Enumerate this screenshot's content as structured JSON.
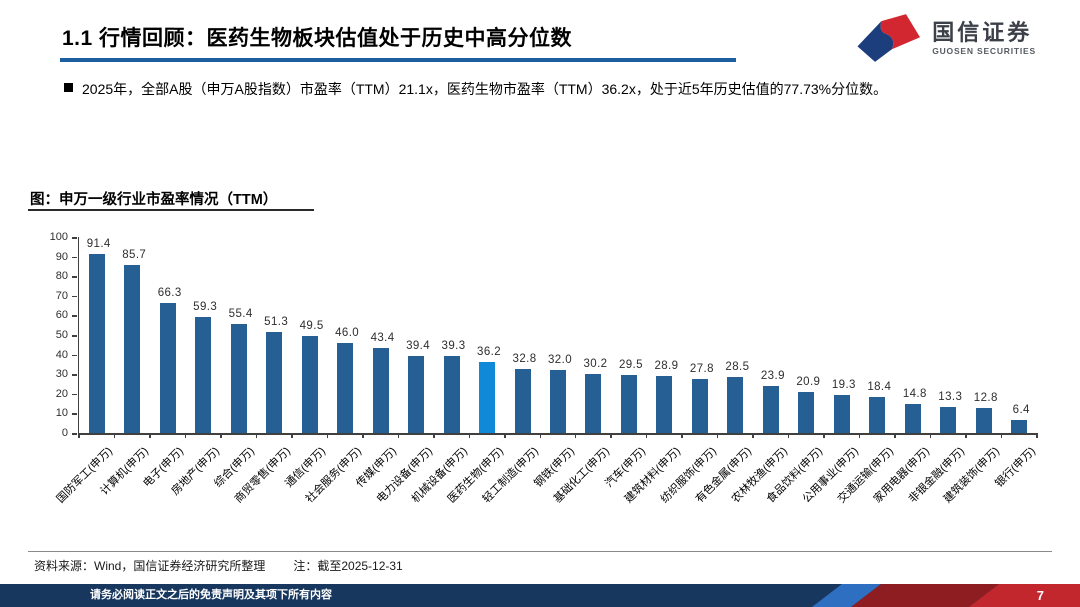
{
  "header": {
    "title": "1.1 行情回顾：医药生物板块估值处于历史中高分位数",
    "logo_cn": "国信证券",
    "logo_en": "GUOSEN SECURITIES"
  },
  "bullet": {
    "text": "2025年，全部A股（申万A股指数）市盈率（TTM）21.1x，医药生物市盈率（TTM）36.2x，处于近5年历史估值的77.73%分位数。"
  },
  "chart_data": {
    "type": "bar",
    "title": "图：申万一级行业市盈率情况（TTM）",
    "categories": [
      "国防军工(申万)",
      "计算机(申万)",
      "电子(申万)",
      "房地产(申万)",
      "综合(申万)",
      "商贸零售(申万)",
      "通信(申万)",
      "社会服务(申万)",
      "传媒(申万)",
      "电力设备(申万)",
      "机械设备(申万)",
      "医药生物(申万)",
      "轻工制造(申万)",
      "钢铁(申万)",
      "基础化工(申万)",
      "汽车(申万)",
      "建筑材料(申万)",
      "纺织服饰(申万)",
      "有色金属(申万)",
      "农林牧渔(申万)",
      "食品饮料(申万)",
      "公用事业(申万)",
      "交通运输(申万)",
      "家用电器(申万)",
      "非银金融(申万)",
      "建筑装饰(申万)",
      "银行(申万)"
    ],
    "values": [
      91.4,
      85.7,
      66.3,
      59.3,
      55.4,
      51.3,
      49.5,
      46.0,
      43.4,
      39.4,
      39.3,
      36.2,
      32.8,
      32.0,
      30.2,
      29.5,
      28.9,
      27.8,
      28.5,
      23.9,
      20.9,
      19.3,
      18.4,
      14.8,
      13.3,
      12.8,
      6.4
    ],
    "value_labels": [
      "91.4",
      "85.7",
      "66.3",
      "59.3",
      "55.4",
      "51.3",
      "49.5",
      "46.0",
      "43.4",
      "39.4",
      "39.3",
      "36.2",
      "32.8",
      "32.0",
      "30.2",
      "29.5",
      "28.9",
      "27.8",
      "28.5",
      "23.9",
      "20.9",
      "19.3",
      "18.4",
      "14.8",
      "13.3",
      "12.8",
      "6.4"
    ],
    "highlight_index": 11,
    "highlight_category": "医药生物(申万)",
    "bar_color": "#265f94",
    "highlight_color": "#1189d9",
    "xlabel": "",
    "ylabel": "",
    "ylim": [
      0,
      100
    ],
    "yticks": [
      0,
      10,
      20,
      30,
      40,
      50,
      60,
      70,
      80,
      90,
      100
    ],
    "grid": false,
    "legend": "none"
  },
  "footer": {
    "source": "资料来源：Wind，国信证券经济研究所整理",
    "note": "注：截至2025-12-31"
  },
  "bottom_bar": {
    "disclaimer": "请务必阅读正文之后的免责声明及其项下所有内容",
    "page_number": "7"
  },
  "colors": {
    "title_underline": "#1c5f9e",
    "bar_navy": "#17375e",
    "bar_bright_blue": "#2f6fc1",
    "bar_dark_red": "#8e1d22",
    "bar_bright_red": "#c1272d",
    "logo_red": "#d22730",
    "logo_blue": "#1d3e7c"
  }
}
